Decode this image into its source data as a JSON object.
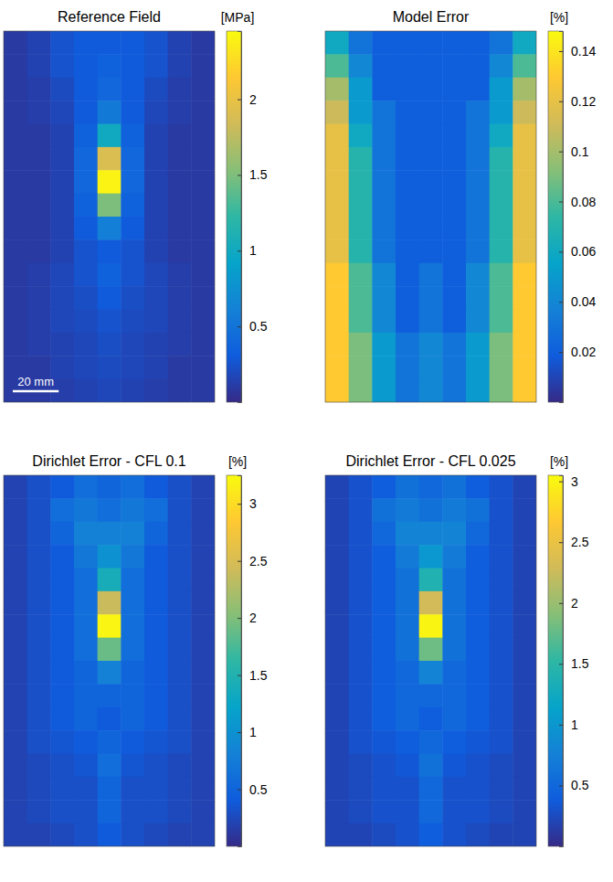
{
  "chart_data": [
    {
      "type": "heatmap",
      "title": "Reference Field",
      "tick_labels": false,
      "xlim": [
        -46,
        46
      ],
      "ylim": [
        0,
        162
      ],
      "scale_bar": {
        "label": "20 mm",
        "length": 20
      },
      "colorbar": {
        "label": "[MPa]",
        "range": [
          0,
          2.45
        ],
        "ticks": [
          0.5,
          1,
          1.5,
          2
        ]
      },
      "cells": [
        [
          0.1,
          0.15,
          0.25,
          0.3,
          0.3,
          0.3,
          0.25,
          0.15,
          0.1
        ],
        [
          0.1,
          0.15,
          0.25,
          0.3,
          0.35,
          0.3,
          0.25,
          0.15,
          0.1
        ],
        [
          0.1,
          0.12,
          0.2,
          0.3,
          0.4,
          0.3,
          0.2,
          0.12,
          0.1
        ],
        [
          0.1,
          0.12,
          0.18,
          0.3,
          0.55,
          0.3,
          0.18,
          0.12,
          0.1
        ],
        [
          0.1,
          0.1,
          0.15,
          0.35,
          1.0,
          0.35,
          0.15,
          0.1,
          0.1
        ],
        [
          0.1,
          0.1,
          0.15,
          0.4,
          1.9,
          0.4,
          0.15,
          0.1,
          0.1
        ],
        [
          0.1,
          0.1,
          0.15,
          0.4,
          2.4,
          0.4,
          0.15,
          0.1,
          0.1
        ],
        [
          0.1,
          0.1,
          0.15,
          0.35,
          1.5,
          0.35,
          0.15,
          0.1,
          0.1
        ],
        [
          0.1,
          0.1,
          0.15,
          0.3,
          0.6,
          0.3,
          0.15,
          0.1,
          0.1
        ],
        [
          0.1,
          0.1,
          0.15,
          0.25,
          0.3,
          0.25,
          0.15,
          0.1,
          0.1
        ],
        [
          0.1,
          0.12,
          0.18,
          0.25,
          0.35,
          0.25,
          0.18,
          0.12,
          0.1
        ],
        [
          0.1,
          0.12,
          0.18,
          0.22,
          0.3,
          0.22,
          0.18,
          0.12,
          0.1
        ],
        [
          0.1,
          0.12,
          0.18,
          0.2,
          0.25,
          0.2,
          0.18,
          0.12,
          0.1
        ],
        [
          0.1,
          0.12,
          0.15,
          0.18,
          0.22,
          0.18,
          0.15,
          0.12,
          0.1
        ],
        [
          0.1,
          0.1,
          0.15,
          0.18,
          0.2,
          0.18,
          0.15,
          0.1,
          0.1
        ],
        [
          0.1,
          0.1,
          0.12,
          0.15,
          0.18,
          0.15,
          0.12,
          0.1,
          0.1
        ]
      ]
    },
    {
      "type": "heatmap",
      "title": "Model Error",
      "tick_labels": false,
      "xlim": [
        -46,
        46
      ],
      "ylim": [
        0,
        162
      ],
      "colorbar": {
        "label": "[%]",
        "range": [
          0,
          0.148
        ],
        "ticks": [
          0.02,
          0.04,
          0.06,
          0.08,
          0.1,
          0.12,
          0.14
        ]
      },
      "cells": [
        [
          0.06,
          0.03,
          0.02,
          0.02,
          0.02,
          0.02,
          0.02,
          0.03,
          0.06
        ],
        [
          0.08,
          0.04,
          0.02,
          0.02,
          0.02,
          0.02,
          0.02,
          0.04,
          0.08
        ],
        [
          0.1,
          0.05,
          0.02,
          0.02,
          0.02,
          0.02,
          0.02,
          0.05,
          0.1
        ],
        [
          0.11,
          0.05,
          0.03,
          0.02,
          0.02,
          0.02,
          0.03,
          0.05,
          0.11
        ],
        [
          0.12,
          0.06,
          0.03,
          0.02,
          0.02,
          0.02,
          0.03,
          0.06,
          0.12
        ],
        [
          0.12,
          0.07,
          0.03,
          0.02,
          0.02,
          0.02,
          0.03,
          0.07,
          0.12
        ],
        [
          0.12,
          0.07,
          0.03,
          0.02,
          0.02,
          0.02,
          0.03,
          0.07,
          0.12
        ],
        [
          0.12,
          0.07,
          0.03,
          0.02,
          0.02,
          0.02,
          0.03,
          0.07,
          0.12
        ],
        [
          0.12,
          0.07,
          0.03,
          0.02,
          0.02,
          0.02,
          0.03,
          0.07,
          0.12
        ],
        [
          0.12,
          0.07,
          0.03,
          0.02,
          0.02,
          0.02,
          0.03,
          0.07,
          0.12
        ],
        [
          0.13,
          0.08,
          0.04,
          0.02,
          0.03,
          0.02,
          0.04,
          0.08,
          0.13
        ],
        [
          0.13,
          0.08,
          0.04,
          0.02,
          0.03,
          0.02,
          0.04,
          0.08,
          0.13
        ],
        [
          0.13,
          0.08,
          0.04,
          0.02,
          0.03,
          0.02,
          0.04,
          0.08,
          0.13
        ],
        [
          0.13,
          0.09,
          0.05,
          0.03,
          0.04,
          0.03,
          0.05,
          0.09,
          0.13
        ],
        [
          0.13,
          0.09,
          0.05,
          0.03,
          0.04,
          0.03,
          0.05,
          0.09,
          0.13
        ],
        [
          0.13,
          0.09,
          0.05,
          0.03,
          0.04,
          0.03,
          0.05,
          0.09,
          0.13
        ]
      ]
    },
    {
      "type": "heatmap",
      "title": "Dirichlet Error - CFL 0.1",
      "tick_labels": false,
      "xlim": [
        -46,
        46
      ],
      "ylim": [
        0,
        162
      ],
      "colorbar": {
        "label": "[%]",
        "range": [
          0,
          3.25
        ],
        "ticks": [
          0.5,
          1,
          1.5,
          2,
          2.5,
          3
        ]
      },
      "cells": [
        [
          0.2,
          0.3,
          0.4,
          0.6,
          0.5,
          0.6,
          0.4,
          0.3,
          0.2
        ],
        [
          0.2,
          0.3,
          0.6,
          0.7,
          0.6,
          0.7,
          0.6,
          0.3,
          0.2
        ],
        [
          0.2,
          0.3,
          0.5,
          0.8,
          0.8,
          0.8,
          0.5,
          0.3,
          0.2
        ],
        [
          0.2,
          0.3,
          0.4,
          0.7,
          1.0,
          0.7,
          0.4,
          0.3,
          0.2
        ],
        [
          0.2,
          0.3,
          0.4,
          0.6,
          1.4,
          0.6,
          0.4,
          0.3,
          0.2
        ],
        [
          0.2,
          0.3,
          0.4,
          0.6,
          2.4,
          0.6,
          0.4,
          0.3,
          0.2
        ],
        [
          0.2,
          0.3,
          0.4,
          0.6,
          3.2,
          0.6,
          0.4,
          0.3,
          0.2
        ],
        [
          0.2,
          0.3,
          0.4,
          0.6,
          1.9,
          0.6,
          0.4,
          0.3,
          0.2
        ],
        [
          0.2,
          0.3,
          0.4,
          0.5,
          0.8,
          0.5,
          0.4,
          0.3,
          0.2
        ],
        [
          0.2,
          0.3,
          0.4,
          0.5,
          0.5,
          0.5,
          0.4,
          0.3,
          0.2
        ],
        [
          0.2,
          0.3,
          0.4,
          0.5,
          0.4,
          0.5,
          0.4,
          0.3,
          0.2
        ],
        [
          0.2,
          0.3,
          0.35,
          0.4,
          0.5,
          0.4,
          0.35,
          0.3,
          0.2
        ],
        [
          0.2,
          0.25,
          0.3,
          0.35,
          0.6,
          0.35,
          0.3,
          0.25,
          0.2
        ],
        [
          0.2,
          0.25,
          0.3,
          0.3,
          0.5,
          0.3,
          0.3,
          0.25,
          0.2
        ],
        [
          0.2,
          0.25,
          0.3,
          0.3,
          0.5,
          0.3,
          0.3,
          0.25,
          0.2
        ],
        [
          0.2,
          0.2,
          0.25,
          0.3,
          0.4,
          0.3,
          0.25,
          0.2,
          0.2
        ]
      ]
    },
    {
      "type": "heatmap",
      "title": "Dirichlet Error - CFL 0.025",
      "tick_labels": false,
      "xlim": [
        -46,
        46
      ],
      "ylim": [
        0,
        162
      ],
      "colorbar": {
        "label": "[%]",
        "range": [
          0,
          3.05
        ],
        "ticks": [
          0.5,
          1,
          1.5,
          2,
          2.5,
          3
        ]
      },
      "cells": [
        [
          0.2,
          0.3,
          0.4,
          0.6,
          0.5,
          0.6,
          0.4,
          0.3,
          0.2
        ],
        [
          0.2,
          0.3,
          0.6,
          0.7,
          0.6,
          0.7,
          0.6,
          0.3,
          0.2
        ],
        [
          0.2,
          0.3,
          0.5,
          0.8,
          0.8,
          0.8,
          0.5,
          0.3,
          0.2
        ],
        [
          0.2,
          0.3,
          0.4,
          0.7,
          1.0,
          0.7,
          0.4,
          0.3,
          0.2
        ],
        [
          0.2,
          0.3,
          0.4,
          0.6,
          1.4,
          0.6,
          0.4,
          0.3,
          0.2
        ],
        [
          0.2,
          0.3,
          0.4,
          0.6,
          2.3,
          0.6,
          0.4,
          0.3,
          0.2
        ],
        [
          0.2,
          0.3,
          0.4,
          0.6,
          3.0,
          0.6,
          0.4,
          0.3,
          0.2
        ],
        [
          0.2,
          0.3,
          0.4,
          0.6,
          1.8,
          0.6,
          0.4,
          0.3,
          0.2
        ],
        [
          0.2,
          0.3,
          0.4,
          0.5,
          0.8,
          0.5,
          0.4,
          0.3,
          0.2
        ],
        [
          0.2,
          0.3,
          0.4,
          0.5,
          0.5,
          0.5,
          0.4,
          0.3,
          0.2
        ],
        [
          0.2,
          0.3,
          0.4,
          0.5,
          0.4,
          0.5,
          0.4,
          0.3,
          0.2
        ],
        [
          0.2,
          0.3,
          0.35,
          0.4,
          0.5,
          0.4,
          0.35,
          0.3,
          0.2
        ],
        [
          0.2,
          0.25,
          0.3,
          0.35,
          0.6,
          0.35,
          0.3,
          0.25,
          0.2
        ],
        [
          0.2,
          0.25,
          0.3,
          0.3,
          0.5,
          0.3,
          0.3,
          0.25,
          0.2
        ],
        [
          0.2,
          0.25,
          0.3,
          0.3,
          0.5,
          0.3,
          0.3,
          0.25,
          0.2
        ],
        [
          0.2,
          0.2,
          0.25,
          0.3,
          0.4,
          0.3,
          0.25,
          0.2,
          0.2
        ]
      ]
    }
  ]
}
